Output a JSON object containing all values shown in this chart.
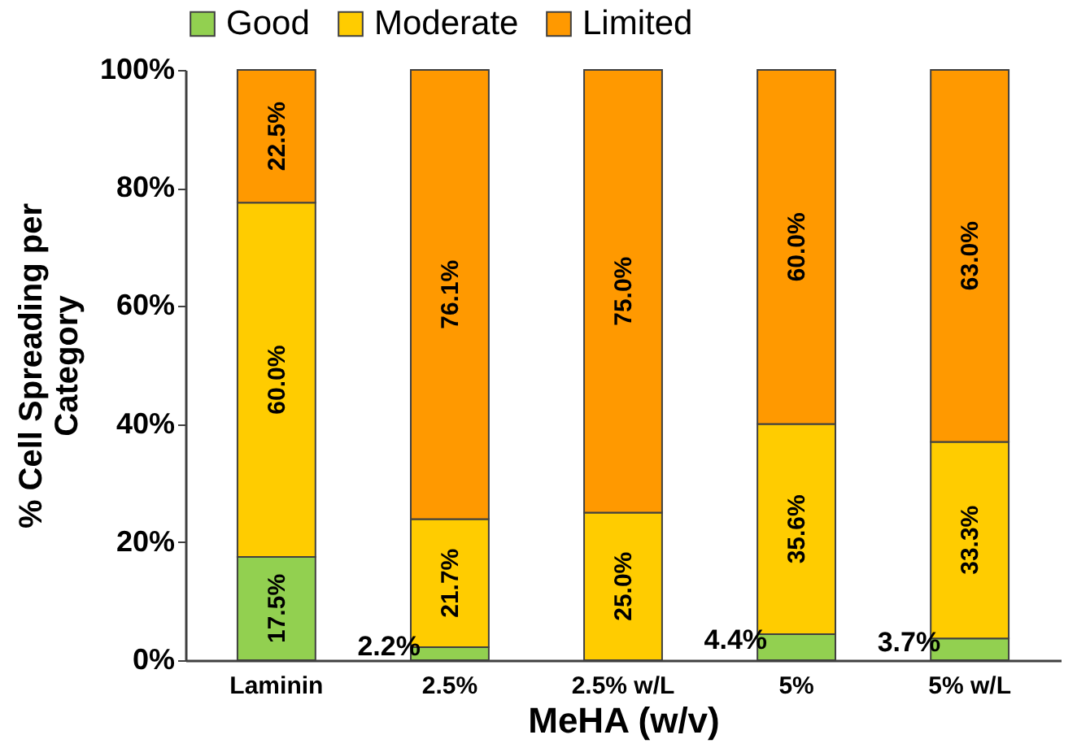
{
  "chart_data": {
    "type": "bar",
    "stacked": true,
    "xlabel": "MeHA (w/v)",
    "ylabel": "% Cell Spreading per Category",
    "categories": [
      "Laminin",
      "2.5%",
      "2.5% w/L",
      "5%",
      "5% w/L"
    ],
    "series": [
      {
        "name": "Good",
        "color": "#92d050",
        "values": [
          17.5,
          2.2,
          null,
          4.4,
          3.7
        ],
        "value_labels": [
          "17.5%",
          "2.2%",
          null,
          "4.4%",
          "3.7%"
        ]
      },
      {
        "name": "Moderate",
        "color": "#ffcc00",
        "values": [
          60.0,
          21.7,
          25.0,
          35.6,
          33.3
        ],
        "value_labels": [
          "60.0%",
          "21.7%",
          "25.0%",
          "35.6%",
          "33.3%"
        ]
      },
      {
        "name": "Limited",
        "color": "#ff9900",
        "values": [
          22.5,
          76.1,
          75.0,
          60.0,
          63.0
        ],
        "value_labels": [
          "22.5%",
          "76.1%",
          "75.0%",
          "60.0%",
          "63.0%"
        ]
      }
    ],
    "ylim": [
      0,
      100
    ],
    "yticks": [
      {
        "value": 0,
        "label": "0%"
      },
      {
        "value": 20,
        "label": "20%"
      },
      {
        "value": 40,
        "label": "40%"
      },
      {
        "value": 60,
        "label": "60%"
      },
      {
        "value": 80,
        "label": "80%"
      },
      {
        "value": 100,
        "label": "100%"
      }
    ],
    "grid": false,
    "legend": "top"
  }
}
